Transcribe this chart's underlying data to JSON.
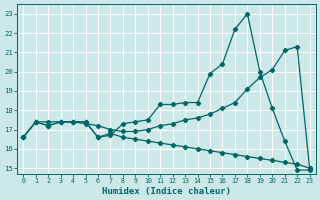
{
  "xlabel": "Humidex (Indice chaleur)",
  "bg_color": "#cde8e8",
  "line_color": "#006666",
  "grid_color": "#b8d8d8",
  "xlim": [
    -0.5,
    23.5
  ],
  "ylim": [
    14.7,
    23.5
  ],
  "xticks": [
    0,
    1,
    2,
    3,
    4,
    5,
    6,
    7,
    8,
    9,
    10,
    11,
    12,
    13,
    14,
    15,
    16,
    17,
    18,
    19,
    20,
    21,
    22,
    23
  ],
  "yticks": [
    15,
    16,
    17,
    18,
    19,
    20,
    21,
    22,
    23
  ],
  "line1_x": [
    0,
    1,
    2,
    3,
    4,
    5,
    6,
    7,
    8,
    9,
    10,
    11,
    12,
    13,
    14,
    15,
    16,
    17,
    18,
    19,
    20,
    21,
    22,
    23
  ],
  "line1_y": [
    16.6,
    17.4,
    17.2,
    17.4,
    17.4,
    17.4,
    16.6,
    16.7,
    17.3,
    17.4,
    17.5,
    18.3,
    18.3,
    18.4,
    18.4,
    19.9,
    20.4,
    22.2,
    23.0,
    20.0,
    18.1,
    16.4,
    14.9,
    14.9
  ],
  "line2_x": [
    0,
    1,
    2,
    3,
    4,
    5,
    6,
    7,
    8,
    9,
    10,
    11,
    12,
    13,
    14,
    15,
    16,
    17,
    18,
    19,
    20,
    21,
    22,
    23
  ],
  "line2_y": [
    16.6,
    17.4,
    17.2,
    17.4,
    17.4,
    17.3,
    17.2,
    17.0,
    16.9,
    16.9,
    17.0,
    17.2,
    17.3,
    17.5,
    17.6,
    17.8,
    18.1,
    18.4,
    19.1,
    19.7,
    20.1,
    21.1,
    21.3,
    15.0
  ],
  "line3_x": [
    0,
    1,
    2,
    3,
    4,
    5,
    6,
    7,
    8,
    9,
    10,
    11,
    12,
    13,
    14,
    15,
    16,
    17,
    18,
    19,
    20,
    21,
    22,
    23
  ],
  "line3_y": [
    16.6,
    17.4,
    17.4,
    17.4,
    17.4,
    17.4,
    16.6,
    16.8,
    16.6,
    16.5,
    16.4,
    16.3,
    16.2,
    16.1,
    16.0,
    15.9,
    15.8,
    15.7,
    15.6,
    15.5,
    15.4,
    15.3,
    15.2,
    15.0
  ]
}
